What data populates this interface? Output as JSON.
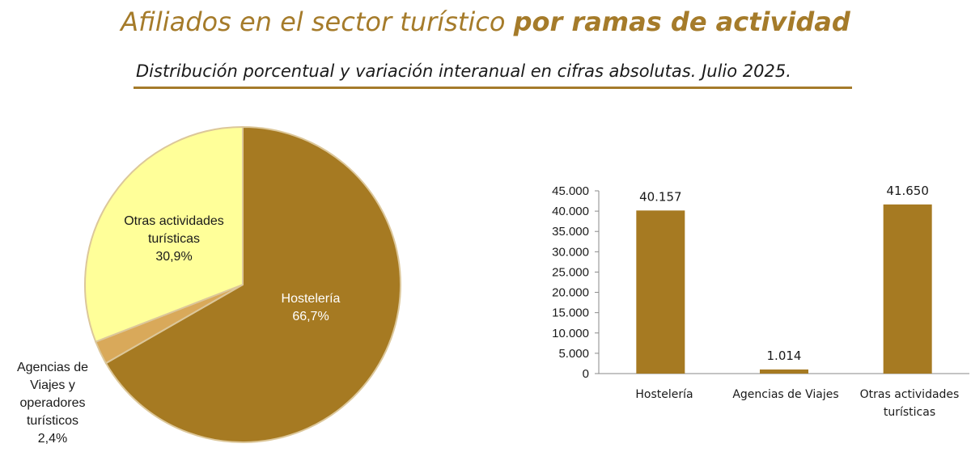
{
  "title": {
    "part1": "Afiliados en el sector turístico ",
    "part2": "por ramas de actividad"
  },
  "subtitle": "Distribución porcentual y variación interanual en cifras absolutas. Julio 2025.",
  "colors": {
    "title": "#a57b2a",
    "hosteleria": "#a67a22",
    "agencias": "#d9a95a",
    "otras": "#ffff99",
    "pie_outline": "#dcc79a",
    "bar": "#a67a22"
  },
  "chart_data": [
    {
      "type": "pie",
      "slices": [
        {
          "label": "Hostelería",
          "percent_label": "66,7%",
          "value": 66.7,
          "color": "#a67a22"
        },
        {
          "label": "Agencias de Viajes y operadores turísticos",
          "percent_label": "2,4%",
          "value": 2.4,
          "color": "#d9a95a"
        },
        {
          "label": "Otras actividades turísticas",
          "percent_label": "30,9%",
          "value": 30.9,
          "color": "#ffff99"
        }
      ],
      "start": "12 o'clock",
      "direction": "clockwise"
    },
    {
      "type": "bar",
      "categories": [
        "Hostelería",
        "Agencias de Viajes",
        "Otras actividades turísticas"
      ],
      "values": [
        40157,
        1014,
        41650
      ],
      "value_labels": [
        "40.157",
        "1.014",
        "41.650"
      ],
      "ylim": [
        0,
        45000
      ],
      "yticks": [
        "0",
        "5.000",
        "10.000",
        "15.000",
        "20.000",
        "25.000",
        "30.000",
        "35.000",
        "40.000",
        "45.000"
      ],
      "grid": false,
      "legend": "none"
    }
  ]
}
